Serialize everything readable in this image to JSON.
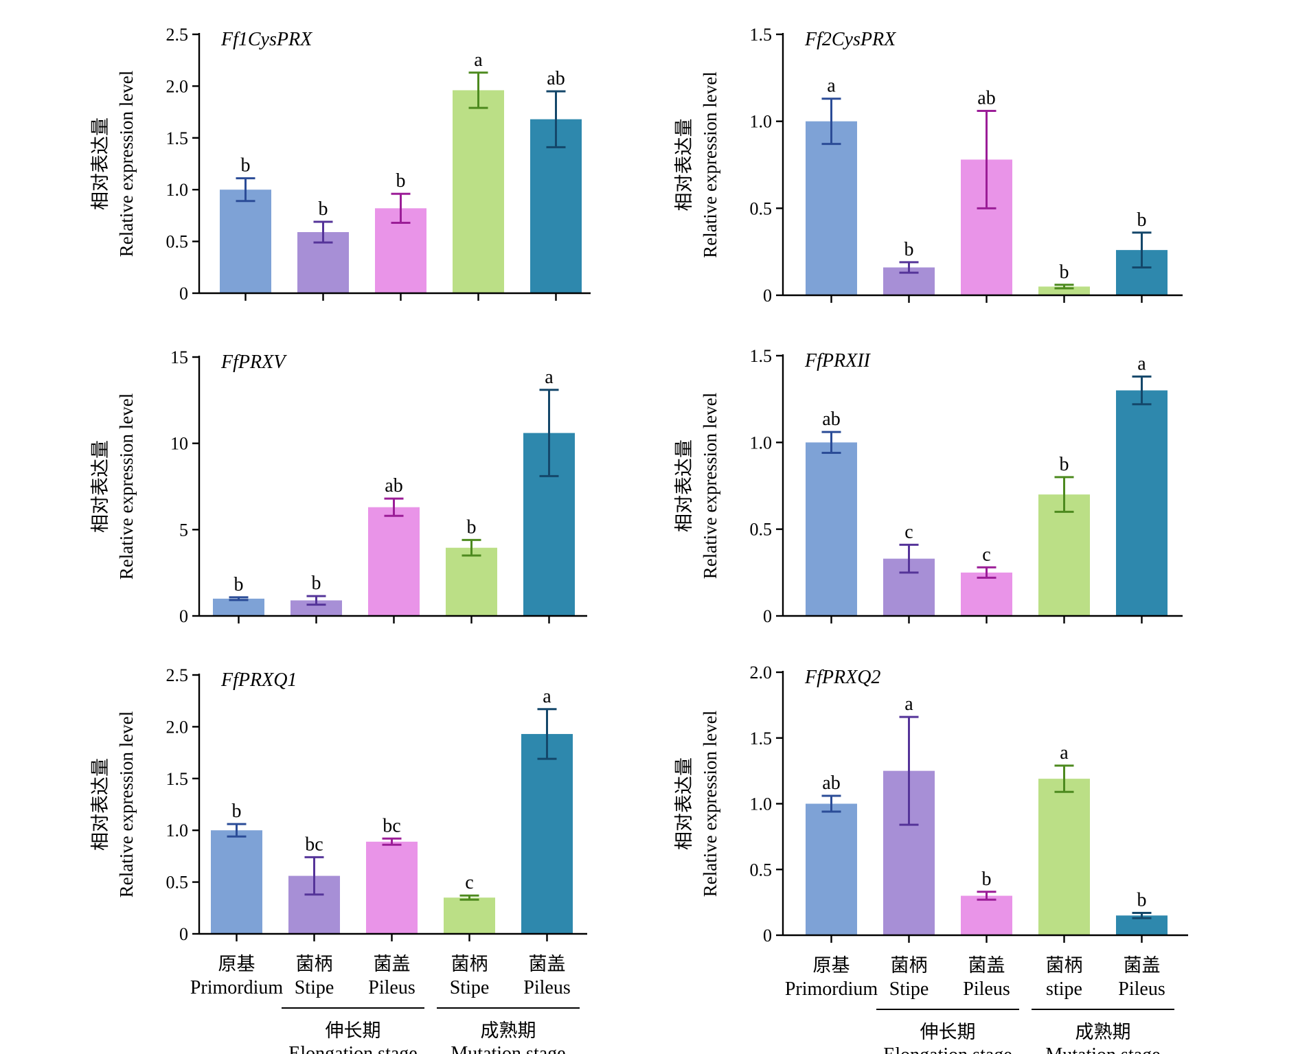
{
  "y_axis_label": {
    "zh": "相对表达量",
    "en": "Relative expression level"
  },
  "colors": [
    "#7ea2d6",
    "#a78fd6",
    "#e994e8",
    "#bbdf86",
    "#2e88ad"
  ],
  "error_colors": [
    "#2b4c97",
    "#553499",
    "#9b1d97",
    "#4d8a1f",
    "#14476a"
  ],
  "categories": {
    "left": [
      {
        "zh": "原基",
        "en": "Primordium"
      },
      {
        "zh": "菌柄",
        "en": "Stipe"
      },
      {
        "zh": "菌盖",
        "en": "Pileus"
      },
      {
        "zh": "菌柄",
        "en": "Stipe"
      },
      {
        "zh": "菌盖",
        "en": "Pileus"
      }
    ],
    "right": [
      {
        "zh": "原基",
        "en": "Primordium"
      },
      {
        "zh": "菌柄",
        "en": "Stipe"
      },
      {
        "zh": "菌盖",
        "en": "Pileus"
      },
      {
        "zh": "菌柄",
        "en": "stipe"
      },
      {
        "zh": "菌盖",
        "en": "Pileus"
      }
    ]
  },
  "groups": [
    {
      "zh": "伸长期",
      "en": "Elongation stage"
    },
    {
      "zh": "成熟期",
      "en": "Mutation stage"
    }
  ],
  "chart_data": [
    {
      "type": "bar",
      "gene": "Ff1CysPRX",
      "ylim": [
        0,
        2.5
      ],
      "yticks": [
        {
          "v": 0,
          "t": "0"
        },
        {
          "v": 0.5,
          "t": "0.5"
        },
        {
          "v": 1,
          "t": "1.0"
        },
        {
          "v": 1.5,
          "t": "1.5"
        },
        {
          "v": 2,
          "t": "2.0"
        },
        {
          "v": 2.5,
          "t": "2.5"
        }
      ],
      "values": [
        1.0,
        0.59,
        0.82,
        1.96,
        1.68
      ],
      "errors": [
        0.11,
        0.1,
        0.14,
        0.17,
        0.27
      ],
      "sig": [
        "b",
        "b",
        "b",
        "a",
        "ab"
      ]
    },
    {
      "type": "bar",
      "gene": "Ff2CysPRX",
      "ylim": [
        0,
        1.5
      ],
      "yticks": [
        {
          "v": 0,
          "t": "0"
        },
        {
          "v": 0.5,
          "t": "0.5"
        },
        {
          "v": 1,
          "t": "1.0"
        },
        {
          "v": 1.5,
          "t": "1.5"
        }
      ],
      "values": [
        1.0,
        0.16,
        0.78,
        0.05,
        0.26
      ],
      "errors": [
        0.13,
        0.03,
        0.28,
        0.01,
        0.1
      ],
      "sig": [
        "a",
        "b",
        "ab",
        "b",
        "b"
      ]
    },
    {
      "type": "bar",
      "gene": "FfPRXV",
      "ylim": [
        0,
        15
      ],
      "yticks": [
        {
          "v": 0,
          "t": "0"
        },
        {
          "v": 5,
          "t": "5"
        },
        {
          "v": 10,
          "t": "10"
        },
        {
          "v": 15,
          "t": "15"
        }
      ],
      "values": [
        1.0,
        0.9,
        6.3,
        3.95,
        10.6
      ],
      "errors": [
        0.08,
        0.25,
        0.5,
        0.45,
        2.5
      ],
      "sig": [
        "b",
        "b",
        "ab",
        "b",
        "a"
      ]
    },
    {
      "type": "bar",
      "gene": "FfPRXII",
      "ylim": [
        0,
        1.5
      ],
      "yticks": [
        {
          "v": 0,
          "t": "0"
        },
        {
          "v": 0.5,
          "t": "0.5"
        },
        {
          "v": 1,
          "t": "1.0"
        },
        {
          "v": 1.5,
          "t": "1.5"
        }
      ],
      "values": [
        1.0,
        0.33,
        0.25,
        0.7,
        1.3
      ],
      "errors": [
        0.06,
        0.08,
        0.03,
        0.1,
        0.08
      ],
      "sig": [
        "ab",
        "c",
        "c",
        "b",
        "a"
      ]
    },
    {
      "type": "bar",
      "gene": "FfPRXQ1",
      "ylim": [
        0,
        2.5
      ],
      "yticks": [
        {
          "v": 0,
          "t": "0"
        },
        {
          "v": 0.5,
          "t": "0.5"
        },
        {
          "v": 1,
          "t": "1.0"
        },
        {
          "v": 1.5,
          "t": "1.5"
        },
        {
          "v": 2,
          "t": "2.0"
        },
        {
          "v": 2.5,
          "t": "2.5"
        }
      ],
      "values": [
        1.0,
        0.56,
        0.89,
        0.35,
        1.93
      ],
      "errors": [
        0.06,
        0.18,
        0.03,
        0.02,
        0.24
      ],
      "sig": [
        "b",
        "bc",
        "bc",
        "c",
        "a"
      ]
    },
    {
      "type": "bar",
      "gene": "FfPRXQ2",
      "ylim": [
        0,
        2.0
      ],
      "yticks": [
        {
          "v": 0,
          "t": "0"
        },
        {
          "v": 0.5,
          "t": "0.5"
        },
        {
          "v": 1,
          "t": "1.0"
        },
        {
          "v": 1.5,
          "t": "1.5"
        },
        {
          "v": 2,
          "t": "2.0"
        }
      ],
      "values": [
        1.0,
        1.25,
        0.3,
        1.19,
        0.15
      ],
      "errors": [
        0.06,
        0.41,
        0.03,
        0.1,
        0.02
      ],
      "sig": [
        "ab",
        "a",
        "b",
        "a",
        "b"
      ]
    }
  ]
}
